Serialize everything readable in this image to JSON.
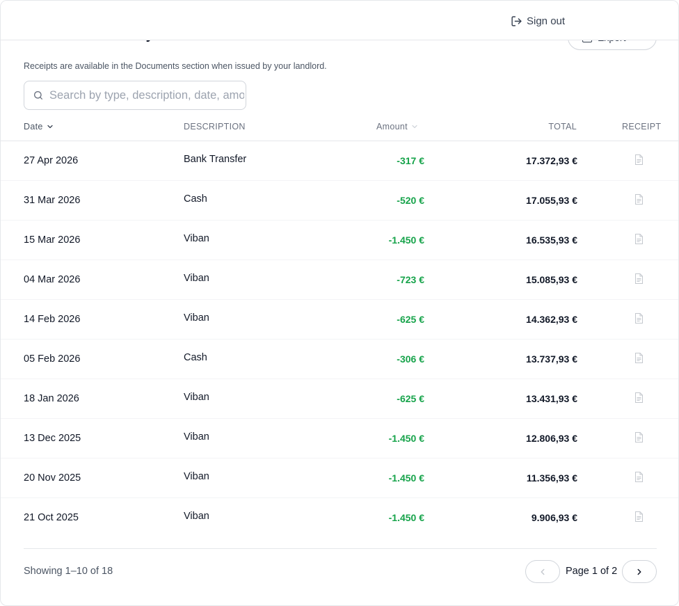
{
  "header": {
    "signout_label": "Sign out"
  },
  "card": {
    "title": "Transaction History",
    "export_label": "Export",
    "subtitle": "Receipts are available in the Documents section when issued by your landlord."
  },
  "search": {
    "placeholder": "Search by type, description, date, amount...",
    "value": ""
  },
  "table": {
    "columns": {
      "date": "Date",
      "description": "DESCRIPTION",
      "amount": "Amount",
      "total": "TOTAL",
      "receipt": "RECEIPT"
    },
    "rows": [
      {
        "date": "27 Apr 2026",
        "description": "Bank Transfer",
        "amount": "-317 €",
        "total": "17.372,93 €"
      },
      {
        "date": "31 Mar 2026",
        "description": "Cash",
        "amount": "-520 €",
        "total": "17.055,93 €"
      },
      {
        "date": "15 Mar 2026",
        "description": "Viban",
        "amount": "-1.450 €",
        "total": "16.535,93 €"
      },
      {
        "date": "04 Mar 2026",
        "description": "Viban",
        "amount": "-723 €",
        "total": "15.085,93 €"
      },
      {
        "date": "14 Feb 2026",
        "description": "Viban",
        "amount": "-625 €",
        "total": "14.362,93 €"
      },
      {
        "date": "05 Feb 2026",
        "description": "Cash",
        "amount": "-306 €",
        "total": "13.737,93 €"
      },
      {
        "date": "18 Jan 2026",
        "description": "Viban",
        "amount": "-625 €",
        "total": "13.431,93 €"
      },
      {
        "date": "13 Dec 2025",
        "description": "Viban",
        "amount": "-1.450 €",
        "total": "12.806,93 €"
      },
      {
        "date": "20 Nov 2025",
        "description": "Viban",
        "amount": "-1.450 €",
        "total": "11.356,93 €"
      },
      {
        "date": "21 Oct 2025",
        "description": "Viban",
        "amount": "-1.450 €",
        "total": "9.906,93 €"
      }
    ]
  },
  "pagination": {
    "showing": "Showing 1–10 of 18",
    "page_label": "Page 1 of 2"
  },
  "colors": {
    "amount": "#16a34a",
    "border": "#e5e7eb",
    "muted": "#6b7280"
  }
}
